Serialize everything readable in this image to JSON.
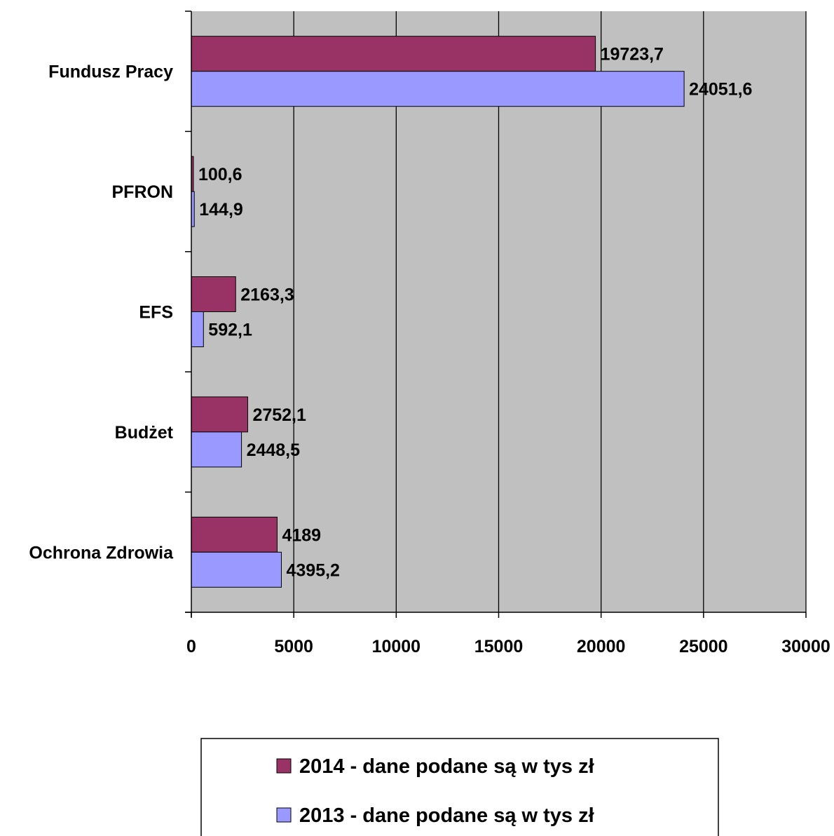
{
  "chart_data": {
    "type": "bar",
    "orientation": "horizontal",
    "categories": [
      "Fundusz Pracy",
      "PFRON",
      "EFS",
      "Budżet",
      "Ochrona Zdrowia"
    ],
    "series": [
      {
        "name": "2014  - dane podane są w tys zł",
        "color": "#993366",
        "values": [
          19723.7,
          100.6,
          2163.3,
          2752.1,
          4189
        ],
        "labels": [
          "19723,7",
          "100,6",
          "2163,3",
          "2752,1",
          "4189"
        ]
      },
      {
        "name": "2013 - dane podane są w tys zł",
        "color": "#9999FF",
        "values": [
          24051.6,
          144.9,
          592.1,
          2448.5,
          4395.2
        ],
        "labels": [
          "24051,6",
          "144,9",
          "592,1",
          "2448,5",
          "4395,2"
        ]
      }
    ],
    "xlim": [
      0,
      30000
    ],
    "x_ticks": [
      0,
      5000,
      10000,
      15000,
      20000,
      25000,
      30000
    ],
    "x_tick_labels": [
      "0",
      "5000",
      "10000",
      "15000",
      "20000",
      "25000",
      "30000"
    ],
    "grid": "vertical",
    "plot_background": "#C0C0C0",
    "legend_position": "bottom",
    "title": "",
    "xlabel": "",
    "ylabel": ""
  }
}
